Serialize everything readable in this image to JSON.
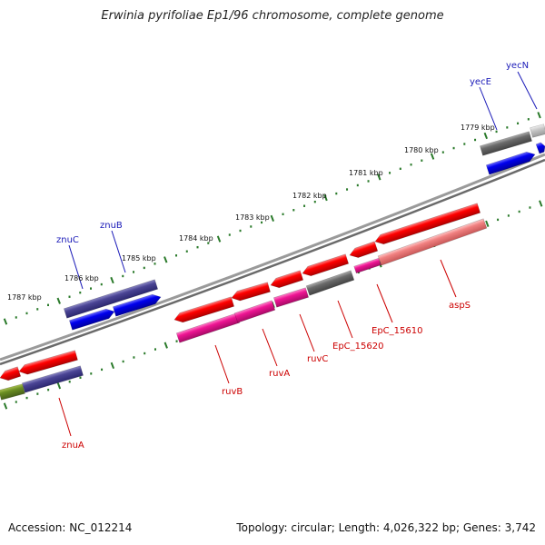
{
  "title": "Erwinia pyrifoliae Ep1/96 chromosome, complete genome",
  "accession": "Accession: NC_012214",
  "summary": "Topology: circular; Length: 4,026,322 bp; Genes: 3,742",
  "colors": {
    "upper_gene_label": "#1a1ab8",
    "lower_gene_label": "#cc0000",
    "backbone": "#888888",
    "tick": "#2a7a2a"
  },
  "scale_labels": [
    "1787 kbp",
    "1786 kbp",
    "1785 kbp",
    "1784 kbp",
    "1783 kbp",
    "1782 kbp",
    "1781 kbp",
    "1780 kbp",
    "1779 kbp"
  ],
  "upper_gene_labels": [
    "znuC",
    "znuB",
    "yecE",
    "yecN"
  ],
  "lower_gene_labels": [
    "znuA",
    "ruvB",
    "ruvA",
    "ruvC",
    "EpC_15620",
    "EpC_15610",
    "aspS"
  ]
}
